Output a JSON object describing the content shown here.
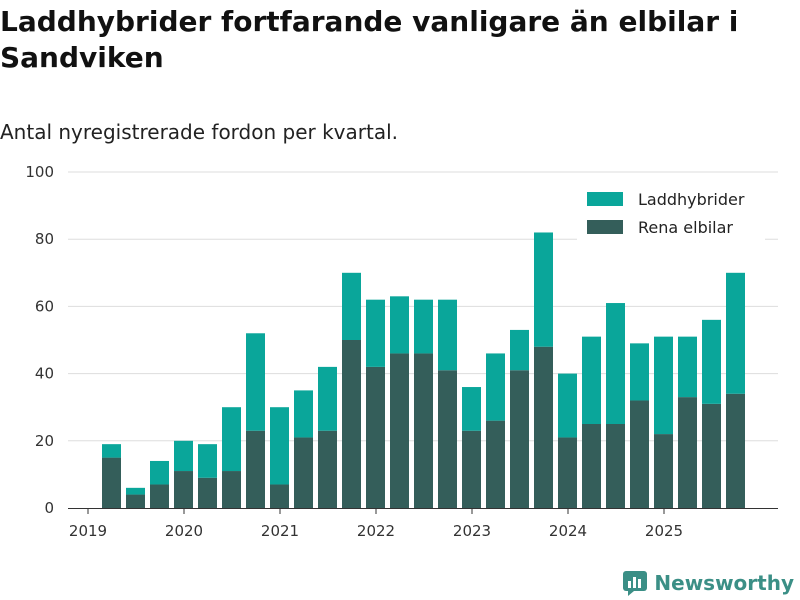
{
  "title": "Laddhybrider fortfarande vanligare än elbilar i Sandviken",
  "subtitle": "Antal nyregistrerade fordon per kvartal.",
  "brand": {
    "name": "Newsworthy",
    "icon": "newsworthy-logo-icon"
  },
  "colors": {
    "laddhybrider": "#0aa69a",
    "elbilar": "#345e5a",
    "grid": "#dddddd",
    "axis": "#333333"
  },
  "chart_data": {
    "type": "bar",
    "stacked": true,
    "title": "Laddhybrider fortfarande vanligare än elbilar i Sandviken",
    "subtitle": "Antal nyregistrerade fordon per kvartal.",
    "xlabel": "",
    "ylabel": "",
    "ylim": [
      0,
      100
    ],
    "yticks": [
      0,
      20,
      40,
      60,
      80,
      100
    ],
    "xticks": [
      "2019",
      "2020",
      "2021",
      "2022",
      "2023",
      "2024",
      "2025"
    ],
    "legend_position": "top-right",
    "categories": [
      "2019 Q2",
      "2019 Q3",
      "2019 Q4",
      "2020 Q1",
      "2020 Q2",
      "2020 Q3",
      "2020 Q4",
      "2021 Q1",
      "2021 Q2",
      "2021 Q3",
      "2021 Q4",
      "2022 Q1",
      "2022 Q2",
      "2022 Q3",
      "2022 Q4",
      "2023 Q1",
      "2023 Q2",
      "2023 Q3",
      "2023 Q4",
      "2024 Q1",
      "2024 Q2",
      "2024 Q3",
      "2024 Q4",
      "2025 Q1",
      "2025 Q2",
      "2025 Q3",
      "2025 Q4"
    ],
    "series": [
      {
        "name": "Rena elbilar",
        "values": [
          15,
          4,
          7,
          11,
          9,
          11,
          23,
          7,
          21,
          23,
          50,
          42,
          46,
          46,
          41,
          23,
          26,
          41,
          48,
          21,
          25,
          25,
          32,
          22,
          33,
          31,
          34
        ]
      },
      {
        "name": "Laddhybrider",
        "values": [
          4,
          2,
          7,
          9,
          10,
          19,
          29,
          23,
          14,
          19,
          20,
          20,
          17,
          16,
          21,
          13,
          20,
          12,
          34,
          19,
          26,
          36,
          17,
          29,
          18,
          25,
          36
        ]
      }
    ]
  }
}
